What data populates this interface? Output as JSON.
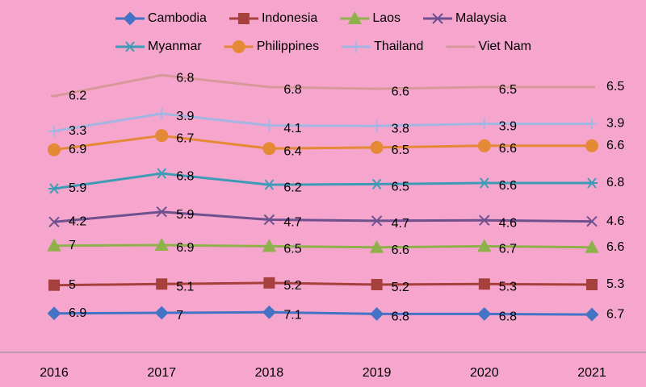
{
  "chart_data": {
    "type": "stacked-line",
    "categories": [
      "2016",
      "2017",
      "2018",
      "2019",
      "2020",
      "2021"
    ],
    "series": [
      {
        "name": "Cambodia",
        "color": "#4472c4",
        "marker": "diamond",
        "values": [
          6.9,
          7,
          7.1,
          6.8,
          6.8,
          6.7
        ]
      },
      {
        "name": "Indonesia",
        "color": "#a5403d",
        "marker": "square",
        "values": [
          5,
          5.1,
          5.2,
          5.2,
          5.3,
          5.3
        ]
      },
      {
        "name": "Laos",
        "color": "#8fb14b",
        "marker": "triangle",
        "values": [
          7,
          6.9,
          6.5,
          6.6,
          6.7,
          6.6
        ]
      },
      {
        "name": "Malaysia",
        "color": "#6e508f",
        "marker": "x",
        "values": [
          4.2,
          5.9,
          4.7,
          4.7,
          4.6,
          4.6
        ]
      },
      {
        "name": "Myanmar",
        "color": "#3e9bb6",
        "marker": "star",
        "values": [
          5.9,
          6.8,
          6.2,
          6.5,
          6.6,
          6.8
        ]
      },
      {
        "name": "Philippines",
        "color": "#e48a36",
        "marker": "circle",
        "values": [
          6.9,
          6.7,
          6.4,
          6.5,
          6.6,
          6.6
        ]
      },
      {
        "name": "Thailand",
        "color": "#a3b6e2",
        "marker": "plus",
        "values": [
          3.3,
          3.9,
          4.1,
          3.8,
          3.9,
          3.9
        ]
      },
      {
        "name": "Viet Nam",
        "color": "#d7989a",
        "marker": "dash",
        "values": [
          6.2,
          6.8,
          6.8,
          6.6,
          6.5,
          6.5
        ]
      }
    ]
  }
}
